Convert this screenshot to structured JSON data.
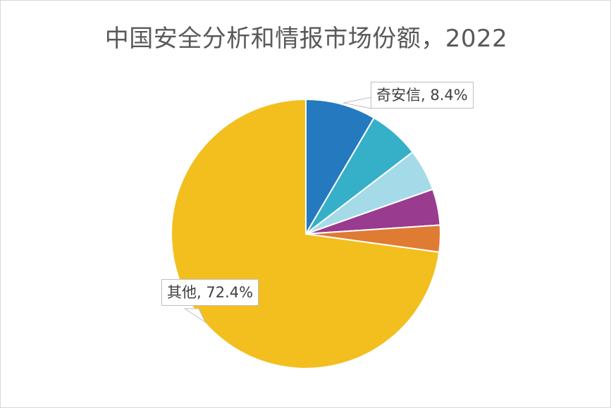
{
  "chart_data": {
    "type": "pie",
    "title": "中国安全分析和情报市场份额，2022",
    "slices": [
      {
        "label": "奇安信",
        "value": 8.4,
        "color": "#2479bf",
        "data_label": "奇安信, 8.4%"
      },
      {
        "label": "",
        "value": 6.1,
        "color": "#36afc9"
      },
      {
        "label": "",
        "value": 5.0,
        "color": "#a5dbe9"
      },
      {
        "label": "",
        "value": 4.3,
        "color": "#993b8e"
      },
      {
        "label": "",
        "value": 3.2,
        "color": "#e07b33"
      },
      {
        "label": "其他",
        "value": 72.4,
        "color": "#f2bf1f",
        "data_label": "其他, 72.4%"
      }
    ],
    "start_angle_deg": 0,
    "direction": "clockwise",
    "legend": "none"
  }
}
